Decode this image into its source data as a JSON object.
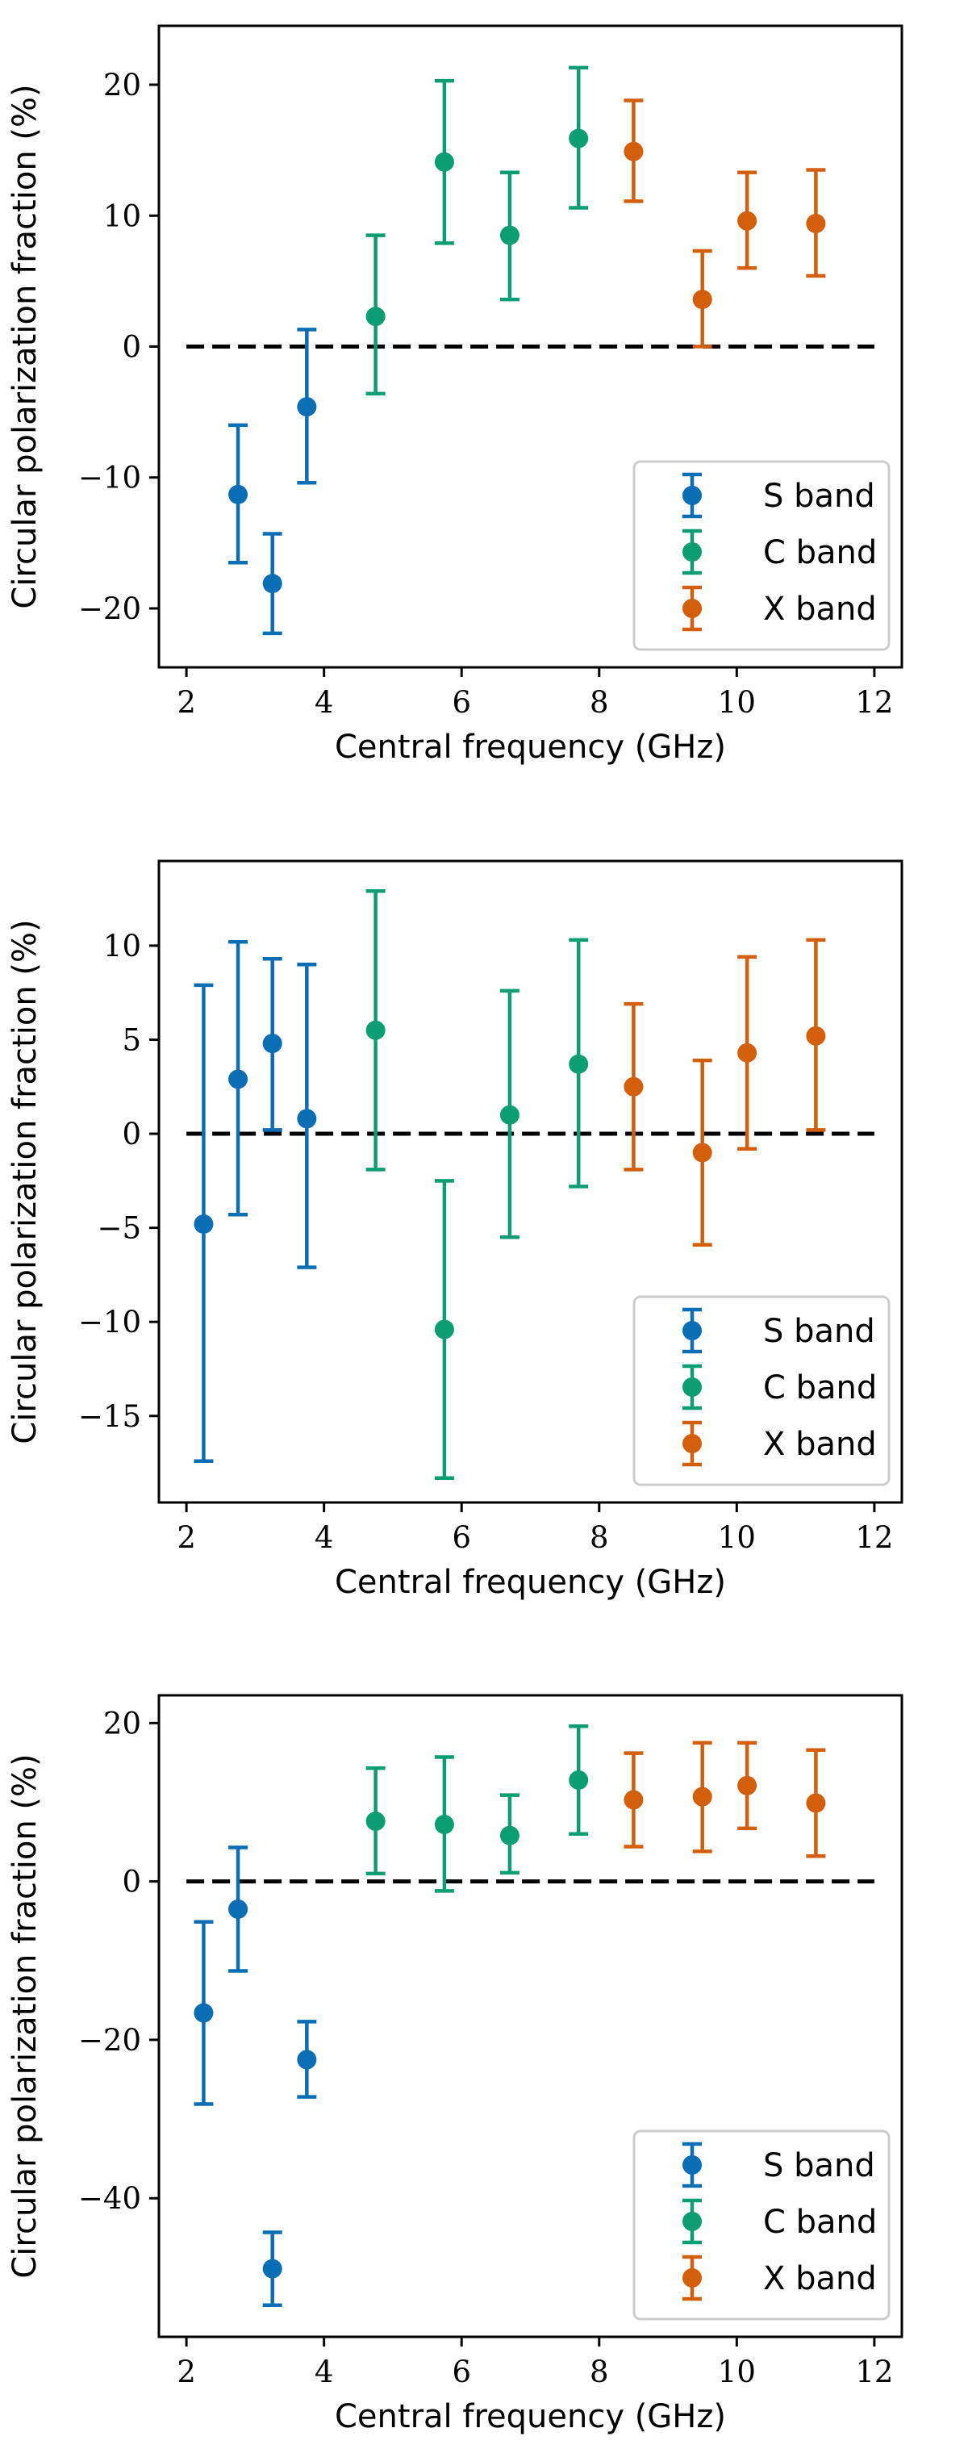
{
  "colors": {
    "S band": "#0a6eb4",
    "C band": "#0c9e73",
    "X band": "#d35f0a"
  },
  "chart_data": [
    {
      "type": "errorbar-scatter",
      "xlabel": "Central frequency (GHz)",
      "ylabel": "Circular polarization fraction (%)",
      "xlim": [
        1.6,
        12.4
      ],
      "ylim": [
        -24.5,
        24.5
      ],
      "xticks": [
        2,
        4,
        6,
        8,
        10,
        12
      ],
      "yticks": [
        -20,
        -10,
        0,
        10,
        20
      ],
      "reference_line_y": 0,
      "legend": [
        "S band",
        "C band",
        "X band"
      ],
      "legend_position": "lower-right",
      "series": [
        {
          "name": "S band",
          "points": [
            {
              "x": 2.75,
              "y": -11.3,
              "lo": -16.5,
              "hi": -6.0
            },
            {
              "x": 3.25,
              "y": -18.1,
              "lo": -21.9,
              "hi": -14.3
            },
            {
              "x": 3.75,
              "y": -4.6,
              "lo": -10.4,
              "hi": 1.3
            }
          ]
        },
        {
          "name": "C band",
          "points": [
            {
              "x": 4.75,
              "y": 2.3,
              "lo": -3.6,
              "hi": 8.5
            },
            {
              "x": 5.75,
              "y": 14.1,
              "lo": 7.9,
              "hi": 20.3
            },
            {
              "x": 6.7,
              "y": 8.5,
              "lo": 3.6,
              "hi": 13.3
            },
            {
              "x": 7.7,
              "y": 15.9,
              "lo": 10.6,
              "hi": 21.3
            }
          ]
        },
        {
          "name": "X band",
          "points": [
            {
              "x": 8.5,
              "y": 14.9,
              "lo": 11.1,
              "hi": 18.8
            },
            {
              "x": 9.5,
              "y": 3.6,
              "lo": 0.0,
              "hi": 7.3
            },
            {
              "x": 10.15,
              "y": 9.6,
              "lo": 6.0,
              "hi": 13.3
            },
            {
              "x": 11.15,
              "y": 9.4,
              "lo": 5.4,
              "hi": 13.5
            }
          ]
        }
      ]
    },
    {
      "type": "errorbar-scatter",
      "xlabel": "Central frequency (GHz)",
      "ylabel": "Circular polarization fraction (%)",
      "xlim": [
        1.6,
        12.4
      ],
      "ylim": [
        -19.6,
        14.5
      ],
      "xticks": [
        2,
        4,
        6,
        8,
        10,
        12
      ],
      "yticks": [
        -15,
        -10,
        -5,
        0,
        5,
        10
      ],
      "reference_line_y": 0,
      "legend": [
        "S band",
        "C band",
        "X band"
      ],
      "legend_position": "lower-right",
      "series": [
        {
          "name": "S band",
          "points": [
            {
              "x": 2.25,
              "y": -4.8,
              "lo": -17.4,
              "hi": 7.9
            },
            {
              "x": 2.75,
              "y": 2.9,
              "lo": -4.3,
              "hi": 10.2
            },
            {
              "x": 3.25,
              "y": 4.8,
              "lo": 0.2,
              "hi": 9.3
            },
            {
              "x": 3.75,
              "y": 0.8,
              "lo": -7.1,
              "hi": 9.0
            }
          ]
        },
        {
          "name": "C band",
          "points": [
            {
              "x": 4.75,
              "y": 5.5,
              "lo": -1.9,
              "hi": 12.9
            },
            {
              "x": 5.75,
              "y": -10.4,
              "lo": -18.3,
              "hi": -2.5
            },
            {
              "x": 6.7,
              "y": 1.0,
              "lo": -5.5,
              "hi": 7.6
            },
            {
              "x": 7.7,
              "y": 3.7,
              "lo": -2.8,
              "hi": 10.3
            }
          ]
        },
        {
          "name": "X band",
          "points": [
            {
              "x": 8.5,
              "y": 2.5,
              "lo": -1.9,
              "hi": 6.9
            },
            {
              "x": 9.5,
              "y": -1.0,
              "lo": -5.9,
              "hi": 3.9
            },
            {
              "x": 10.15,
              "y": 4.3,
              "lo": -0.8,
              "hi": 9.4
            },
            {
              "x": 11.15,
              "y": 5.2,
              "lo": 0.2,
              "hi": 10.3
            }
          ]
        }
      ]
    },
    {
      "type": "errorbar-scatter",
      "xlabel": "Central frequency (GHz)",
      "ylabel": "Circular polarization fraction (%)",
      "xlim": [
        1.6,
        12.4
      ],
      "ylim": [
        -57.5,
        23.5
      ],
      "xticks": [
        2,
        4,
        6,
        8,
        10,
        12
      ],
      "yticks": [
        -40,
        -20,
        0,
        20
      ],
      "reference_line_y": 0,
      "legend": [
        "S band",
        "C band",
        "X band"
      ],
      "legend_position": "lower-right",
      "series": [
        {
          "name": "S band",
          "points": [
            {
              "x": 2.25,
              "y": -16.6,
              "lo": -28.1,
              "hi": -5.1
            },
            {
              "x": 2.75,
              "y": -3.5,
              "lo": -11.3,
              "hi": 4.3
            },
            {
              "x": 3.25,
              "y": -48.9,
              "lo": -53.5,
              "hi": -44.3
            },
            {
              "x": 3.75,
              "y": -22.5,
              "lo": -27.2,
              "hi": -17.7
            }
          ]
        },
        {
          "name": "C band",
          "points": [
            {
              "x": 4.75,
              "y": 7.6,
              "lo": 1.0,
              "hi": 14.3
            },
            {
              "x": 5.75,
              "y": 7.2,
              "lo": -1.2,
              "hi": 15.7
            },
            {
              "x": 6.7,
              "y": 5.8,
              "lo": 1.1,
              "hi": 10.9
            },
            {
              "x": 7.7,
              "y": 12.8,
              "lo": 6.0,
              "hi": 19.6
            }
          ]
        },
        {
          "name": "X band",
          "points": [
            {
              "x": 8.5,
              "y": 10.3,
              "lo": 4.4,
              "hi": 16.2
            },
            {
              "x": 9.5,
              "y": 10.7,
              "lo": 3.8,
              "hi": 17.5
            },
            {
              "x": 10.15,
              "y": 12.1,
              "lo": 6.7,
              "hi": 17.5
            },
            {
              "x": 11.15,
              "y": 9.9,
              "lo": 3.2,
              "hi": 16.6
            }
          ]
        }
      ]
    }
  ]
}
